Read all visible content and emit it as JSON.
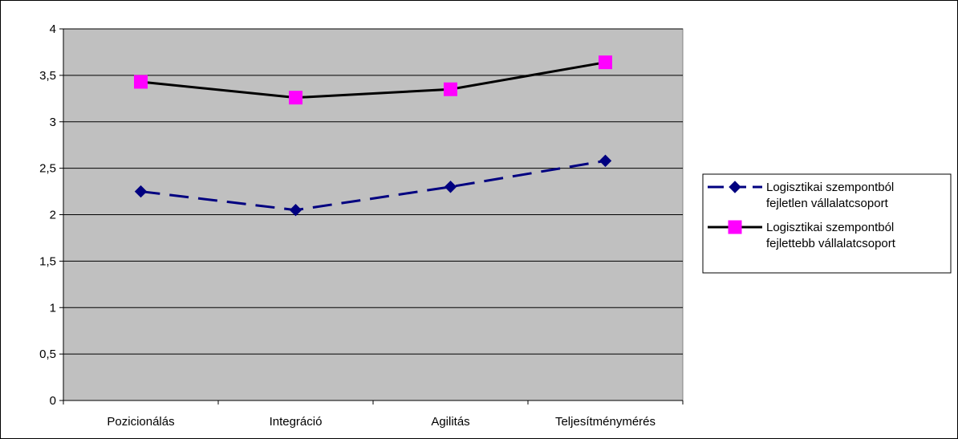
{
  "chart_data": {
    "type": "line",
    "title": "",
    "xlabel": "",
    "ylabel": "",
    "categories": [
      "Pozicionálás",
      "Integráció",
      "Agilitás",
      "Teljesítménymérés"
    ],
    "ylim": [
      0,
      4
    ],
    "yticks": [
      {
        "value": 0,
        "label": "0"
      },
      {
        "value": 0.5,
        "label": "0,5"
      },
      {
        "value": 1,
        "label": "1"
      },
      {
        "value": 1.5,
        "label": "1,5"
      },
      {
        "value": 2,
        "label": "2"
      },
      {
        "value": 2.5,
        "label": "2,5"
      },
      {
        "value": 3,
        "label": "3"
      },
      {
        "value": 3.5,
        "label": "3,5"
      },
      {
        "value": 4,
        "label": "4"
      }
    ],
    "grid": true,
    "legend_position": "right",
    "plot_background": "#c0c0c0",
    "series": [
      {
        "name": "Logisztikai szempontból fejletlen vállalatcsoport",
        "name_lines": [
          "Logisztikai szempontból",
          "fejletlen vállalatcsoport"
        ],
        "values": [
          2.25,
          2.05,
          2.3,
          2.58
        ],
        "color": "#000080",
        "line_style": "dashed",
        "marker": "diamond",
        "marker_color": "#000080"
      },
      {
        "name": "Logisztikai szempontból fejlettebb vállalatcsoport",
        "name_lines": [
          "Logisztikai szempontból",
          "fejlettebb vállalatcsoport"
        ],
        "values": [
          3.43,
          3.26,
          3.35,
          3.64
        ],
        "color": "#000000",
        "line_style": "solid",
        "marker": "square",
        "marker_color": "#ff00ff"
      }
    ]
  }
}
